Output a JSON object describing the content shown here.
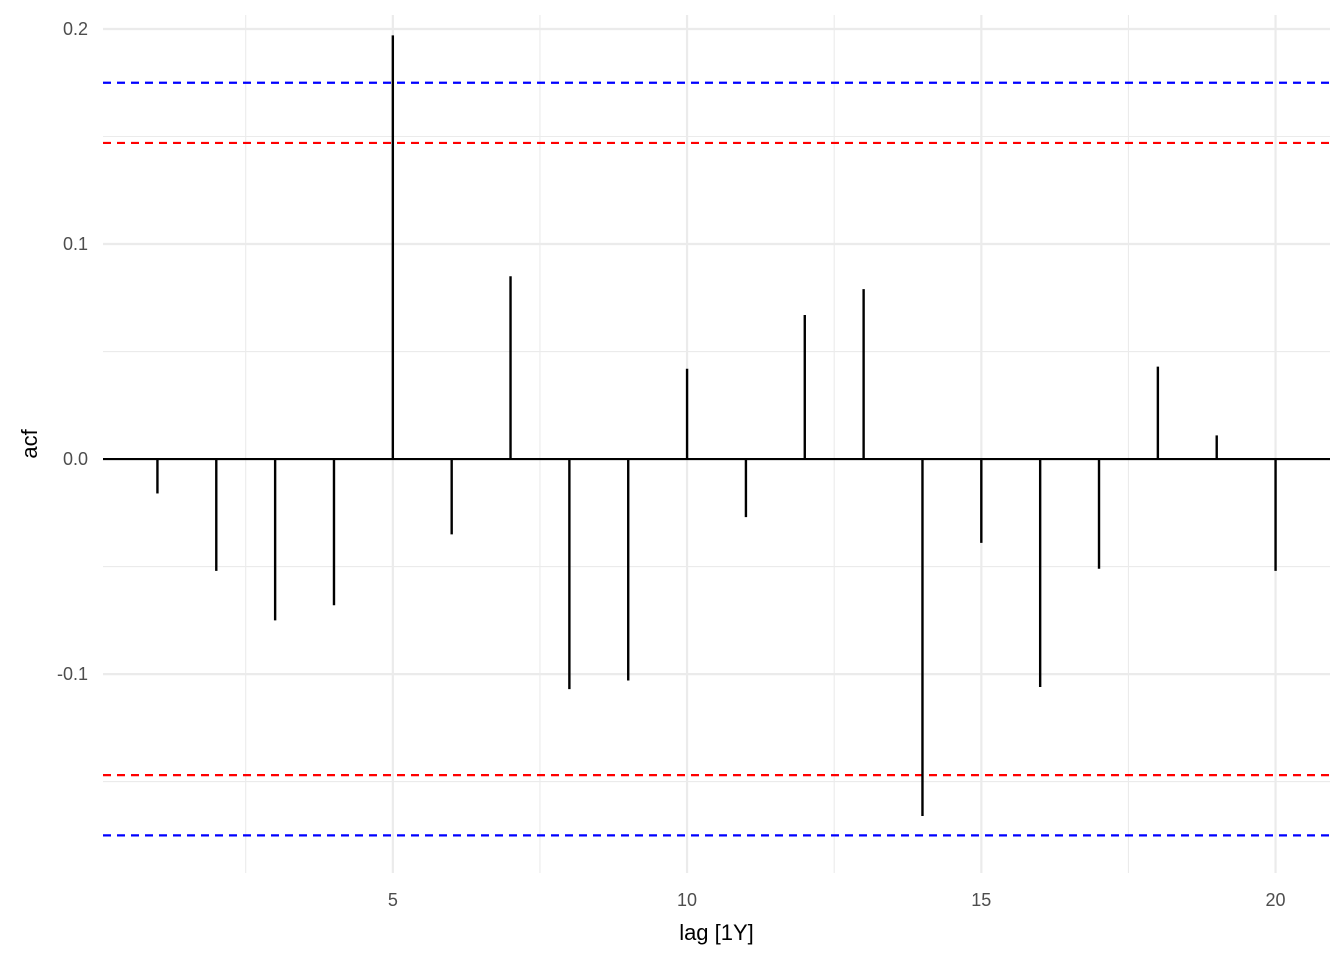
{
  "chart_data": {
    "type": "bar",
    "xlabel": "lag [1Y]",
    "ylabel": "acf",
    "x": [
      1,
      2,
      3,
      4,
      5,
      6,
      7,
      8,
      9,
      10,
      11,
      12,
      13,
      14,
      15,
      16,
      17,
      18,
      19,
      20
    ],
    "values": [
      -0.016,
      -0.052,
      -0.075,
      -0.068,
      0.197,
      -0.035,
      0.085,
      -0.107,
      -0.103,
      0.042,
      -0.027,
      0.067,
      0.079,
      -0.166,
      -0.039,
      -0.106,
      -0.051,
      0.043,
      0.011,
      -0.052
    ],
    "xlim": [
      0.075,
      20.925
    ],
    "ylim": [
      -0.1925,
      0.2065
    ],
    "x_ticks": [
      5,
      10,
      15,
      20
    ],
    "x_tick_labels": [
      "5",
      "10",
      "15",
      "20"
    ],
    "y_ticks": [
      -0.1,
      0.0,
      0.1,
      0.2
    ],
    "y_tick_labels": [
      "-0.1",
      "0.0",
      "0.1",
      "0.2"
    ],
    "reference_lines": [
      {
        "value": 0.175,
        "color": "#0000ff",
        "style": "dashed"
      },
      {
        "value": -0.175,
        "color": "#0000ff",
        "style": "dashed"
      },
      {
        "value": 0.147,
        "color": "#ff0000",
        "style": "dashed"
      },
      {
        "value": -0.147,
        "color": "#ff0000",
        "style": "dashed"
      }
    ],
    "grid": true,
    "colors": {
      "bars": "#000000",
      "grid": "#ebebeb",
      "zero_line": "#000000"
    }
  }
}
